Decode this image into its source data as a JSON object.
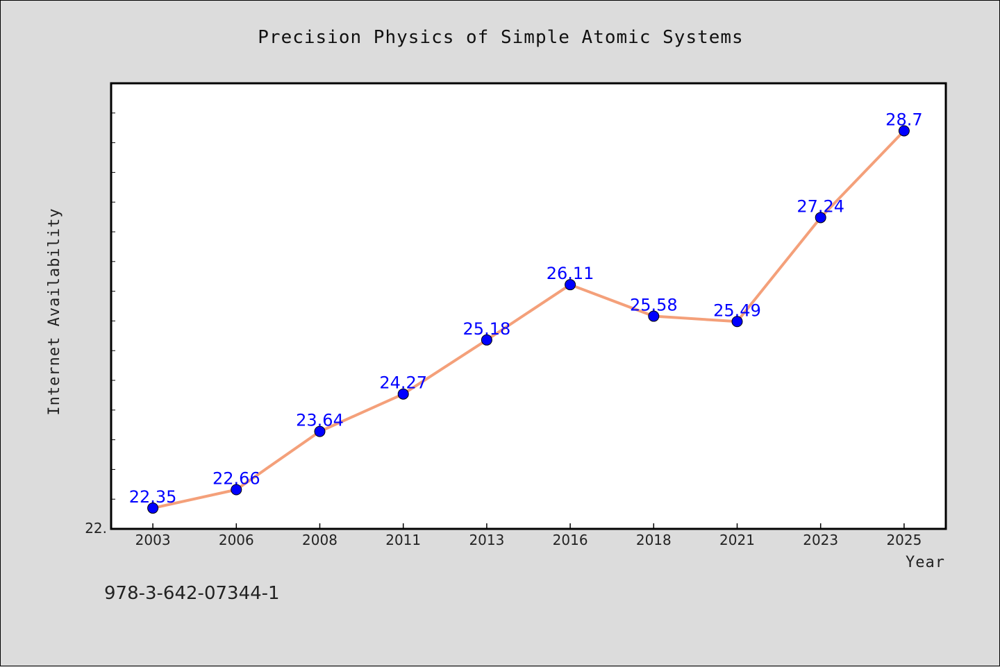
{
  "chart_data": {
    "type": "line",
    "title": "Precision Physics of Simple Atomic Systems",
    "xlabel": "Year",
    "ylabel": "Internet Availability",
    "categories": [
      "2003",
      "2006",
      "2008",
      "2011",
      "2013",
      "2016",
      "2018",
      "2021",
      "2023",
      "2025"
    ],
    "series": [
      {
        "values": [
          22.35,
          22.66,
          23.64,
          24.27,
          25.18,
          26.11,
          25.58,
          25.49,
          27.24,
          28.7
        ],
        "labels": [
          "22.35",
          "22.66",
          "23.64",
          "24.27",
          "25.18",
          "26.11",
          "25.58",
          "25.49",
          "27.24",
          "28.7"
        ]
      }
    ],
    "ytick_label": "22.",
    "ylim": [
      22.0,
      29.5
    ],
    "grid": false,
    "legend": "none"
  },
  "footer": {
    "isbn": "978-3-642-07344-1"
  },
  "colors": {
    "line": "#f4a07a",
    "marker": "#0000ff",
    "data_label": "#0000ff",
    "plot_background": "#ffffff",
    "page_background": "#dcdcdc"
  }
}
